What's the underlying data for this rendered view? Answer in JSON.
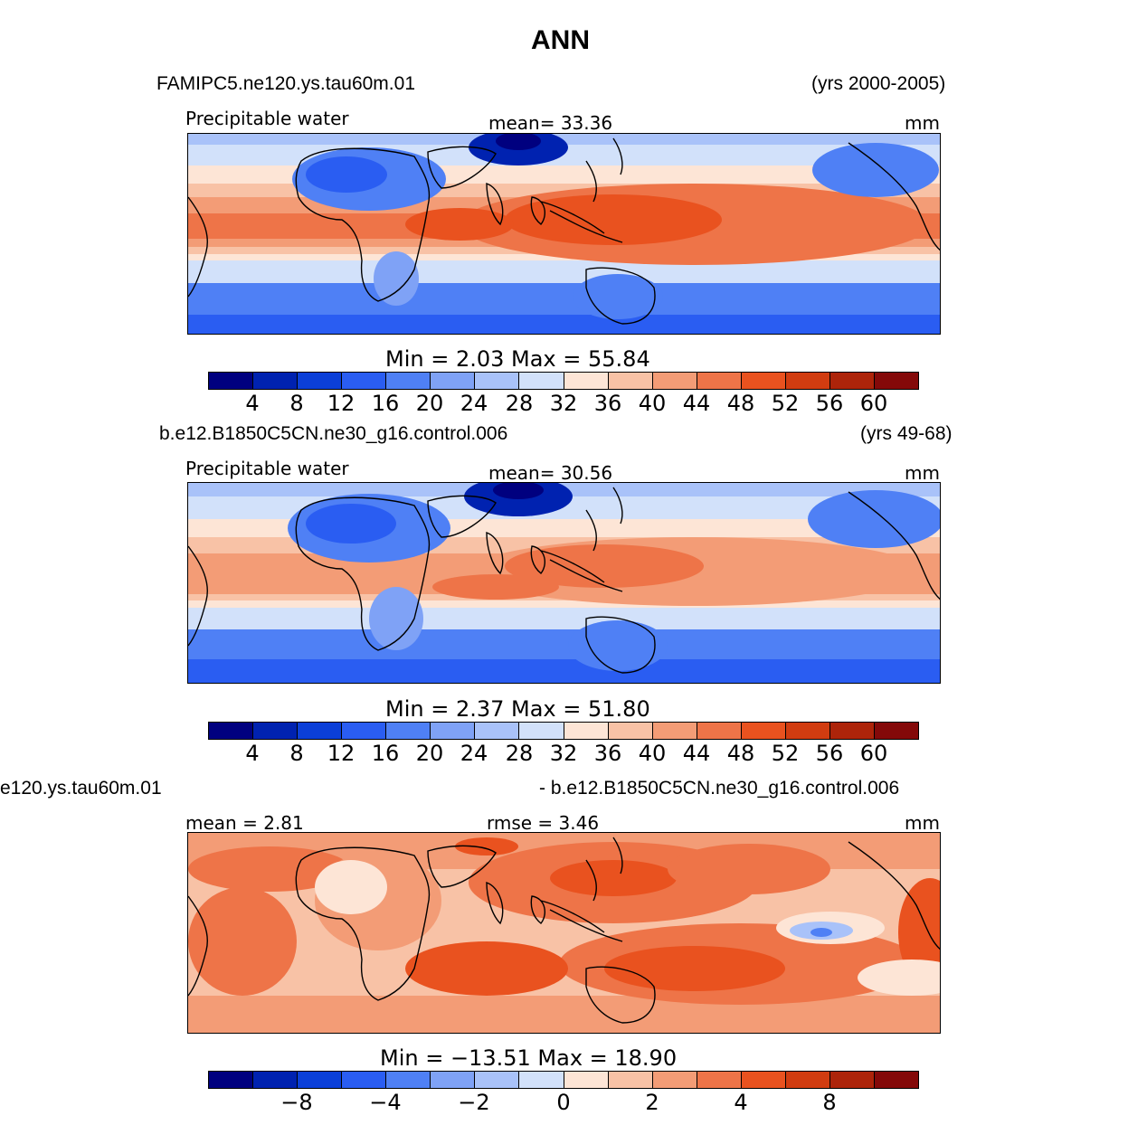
{
  "figure": {
    "title": "ANN",
    "colors": {
      "palette": [
        "#00007f",
        "#0022b0",
        "#0b3fd8",
        "#2a5df2",
        "#4f80f5",
        "#7fa2f6",
        "#a9c2f9",
        "#d2e1fa",
        "#fde5d6",
        "#f8c2a6",
        "#f39c76",
        "#ee7448",
        "#e9521f",
        "#d13c10",
        "#ad240a",
        "#840909"
      ],
      "land": "#000000"
    }
  },
  "panels": [
    {
      "case_name": "FAMIPC5.ne120.ys.tau60m.01",
      "years": "(yrs 2000-2005)",
      "left_label": "Precipitable  water",
      "center_label": "mean=   33.36",
      "units": "mm",
      "min_max": "Min  =     2.03  Max  =    55.84",
      "colorbar_ticks": [
        "4",
        "8",
        "12",
        "16",
        "20",
        "24",
        "28",
        "32",
        "36",
        "40",
        "44",
        "48",
        "52",
        "56",
        "60"
      ]
    },
    {
      "case_name": "b.e12.B1850C5CN.ne30_g16.control.006",
      "years": "(yrs 49-68)",
      "left_label": "Precipitable  water",
      "center_label": "mean=   30.56",
      "units": "mm",
      "min_max": "Min  =     2.37  Max  =    51.80",
      "colorbar_ticks": [
        "4",
        "8",
        "12",
        "16",
        "20",
        "24",
        "28",
        "32",
        "36",
        "40",
        "44",
        "48",
        "52",
        "56",
        "60"
      ]
    },
    {
      "case_name": "e120.ys.tau60m.01",
      "years": "- b.e12.B1850C5CN.ne30_g16.control.006",
      "left_label": "mean =     2.81",
      "center_label": "rmse =     3.46",
      "units": "mm",
      "min_max": "Min  =  −13.51  Max  =    18.90",
      "colorbar_ticks": [
        "−8",
        "−4",
        "−2",
        "0",
        "2",
        "4",
        "8"
      ]
    }
  ]
}
